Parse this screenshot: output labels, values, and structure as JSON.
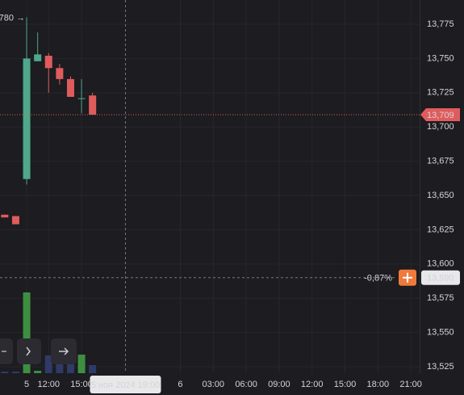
{
  "chart_data": {
    "type": "candlestick",
    "x": [
      8,
      9,
      10,
      11,
      12,
      13,
      14,
      15,
      16
    ],
    "open": [
      13.636,
      13.635,
      13.662,
      13.748,
      13.752,
      13.743,
      13.735,
      13.721,
      13.723
    ],
    "high": [
      13.636,
      13.635,
      13.78,
      13.769,
      13.754,
      13.746,
      13.737,
      13.735,
      13.725
    ],
    "low": [
      13.634,
      13.629,
      13.658,
      13.748,
      13.725,
      13.731,
      13.722,
      13.71,
      13.709
    ],
    "close": [
      13.634,
      13.629,
      13.75,
      13.753,
      13.743,
      13.735,
      13.722,
      13.721,
      13.709
    ],
    "volume": [
      2,
      2,
      100,
      3,
      22,
      25,
      20,
      23,
      10
    ],
    "up_color": "#4fa88a",
    "down_color": "#e05c5c",
    "volume_up_color": "#3e8e41",
    "volume_down_color": "#2f3a66",
    "xlim": [
      7.57,
      45.8
    ],
    "xticks": [
      {
        "value": 10,
        "label": "5"
      },
      {
        "value": 12,
        "label": "12:00"
      },
      {
        "value": 15,
        "label": "15:00"
      },
      {
        "value": 24,
        "label": "6"
      },
      {
        "value": 27,
        "label": "03:00"
      },
      {
        "value": 30,
        "label": "06:00"
      },
      {
        "value": 33,
        "label": "09:00"
      },
      {
        "value": 36,
        "label": "12:00"
      },
      {
        "value": 39,
        "label": "15:00"
      },
      {
        "value": 42,
        "label": "18:00"
      },
      {
        "value": 45,
        "label": "21:00"
      }
    ],
    "ylim": [
      13.5203,
      13.7927
    ],
    "yticks": [
      {
        "value": 13.775,
        "label": "13,775"
      },
      {
        "value": 13.75,
        "label": "13,750"
      },
      {
        "value": 13.725,
        "label": "13,725"
      },
      {
        "value": 13.7,
        "label": "13,700"
      },
      {
        "value": 13.675,
        "label": "13,675"
      },
      {
        "value": 13.65,
        "label": "13,650"
      },
      {
        "value": 13.625,
        "label": "13,625"
      },
      {
        "value": 13.6,
        "label": "13,600"
      },
      {
        "value": 13.575,
        "label": "13,575"
      },
      {
        "value": 13.55,
        "label": "13,550"
      },
      {
        "value": 13.525,
        "label": "13,525"
      }
    ],
    "grid": true,
    "high_label": "780 →",
    "last_price": {
      "value": 13.709,
      "label": "13,709"
    },
    "crosshair": {
      "x": 19,
      "x_label": "5 ноя 2024 19:00",
      "y": 13.59,
      "y_label": "13,590",
      "change_label": "-0,87%"
    }
  }
}
